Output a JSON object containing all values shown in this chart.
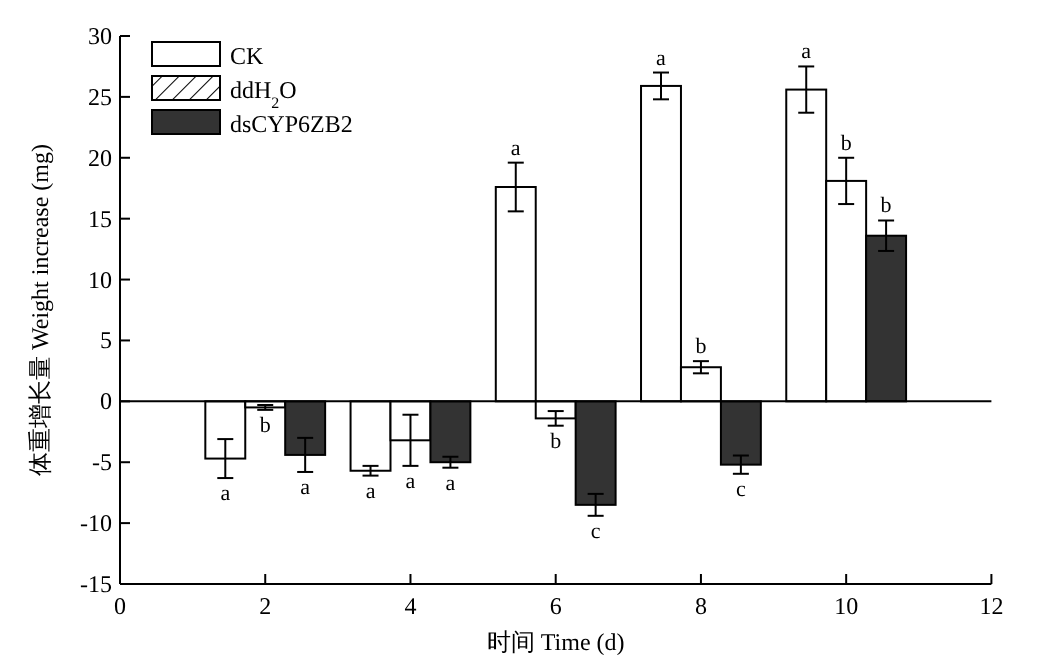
{
  "chart_data": {
    "type": "bar",
    "xlabel": "时间 Time (d)",
    "ylabel": "体重增长量 Weight increase (mg)",
    "x": [
      2,
      4,
      6,
      8,
      10
    ],
    "xlim": [
      0,
      12
    ],
    "xticks": [
      0,
      2,
      4,
      6,
      8,
      10,
      12
    ],
    "ylim": [
      -15,
      30
    ],
    "yticks": [
      -15,
      -10,
      -5,
      0,
      5,
      10,
      15,
      20,
      25,
      30
    ],
    "legend": "top left",
    "series": [
      {
        "name": "CK",
        "color": "#ffffff",
        "values": [
          -4.7,
          -5.7,
          17.6,
          25.9,
          25.6
        ],
        "errors": [
          1.6,
          0.4,
          2.0,
          1.1,
          1.9
        ],
        "value_labels": [
          "a",
          "a",
          "a",
          "a",
          "a"
        ]
      },
      {
        "name": "ddH$_{2}$O",
        "color": "#ffffff",
        "values": [
          -0.5,
          -3.2,
          -1.4,
          2.8,
          18.1
        ],
        "errors": [
          0.2,
          2.1,
          0.6,
          0.5,
          1.9
        ],
        "value_labels": [
          "b",
          "a",
          "b",
          "b",
          "b"
        ]
      },
      {
        "name": "dsCYP6ZB2",
        "color": "#333333",
        "values": [
          -4.4,
          -5.0,
          -8.5,
          -5.2,
          13.6
        ],
        "errors": [
          1.4,
          0.45,
          0.9,
          0.75,
          1.25
        ],
        "value_labels": [
          "a",
          "a",
          "c",
          "c",
          "b"
        ]
      }
    ]
  }
}
